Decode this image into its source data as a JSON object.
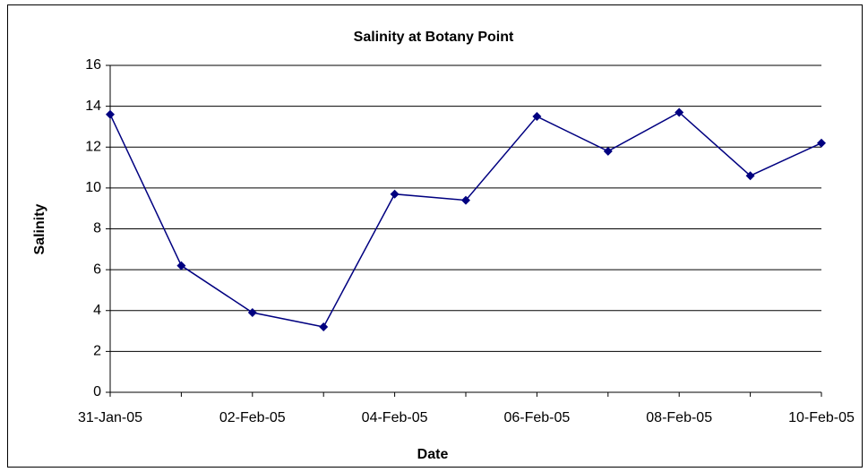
{
  "chart_data": {
    "type": "line",
    "title": "Salinity at Botany Point",
    "x_label": "Date",
    "y_label": "Salinity",
    "categories": [
      "31-Jan-05",
      null,
      "02-Feb-05",
      null,
      "04-Feb-05",
      null,
      "06-Feb-05",
      null,
      "08-Feb-05",
      null,
      "10-Feb-05"
    ],
    "series": [
      {
        "name": "Salinity",
        "color": "#000080",
        "values": [
          13.6,
          6.2,
          3.9,
          3.2,
          9.7,
          9.4,
          13.5,
          11.8,
          13.7,
          10.6,
          12.2
        ]
      }
    ],
    "ylim": [
      0,
      16
    ],
    "yticks": [
      0,
      2,
      4,
      6,
      8,
      10,
      12,
      14,
      16
    ],
    "grid": true
  }
}
